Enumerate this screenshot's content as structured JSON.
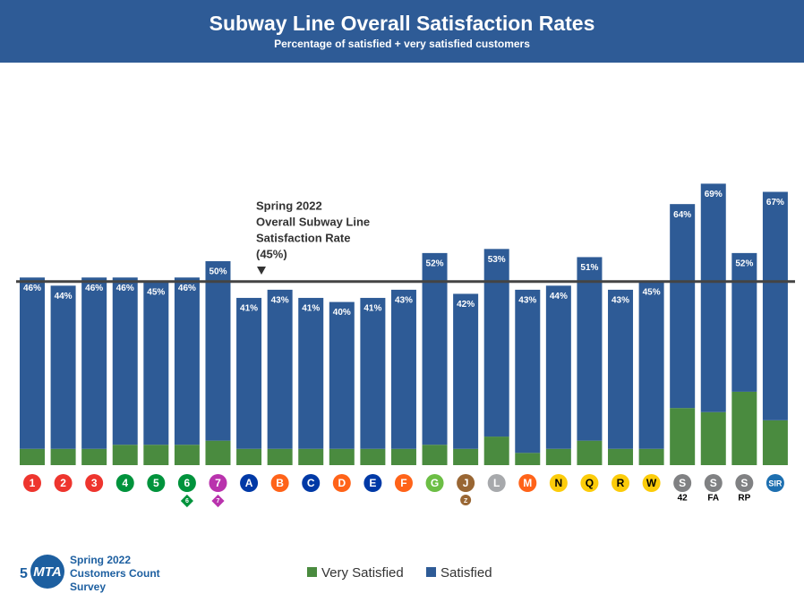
{
  "chart_data": {
    "type": "stacked_bar",
    "title": "Subway Line Overall Satisfaction Rates",
    "subtitle": "Percentage of satisfied + very satisfied customers",
    "categories": [
      "1",
      "2",
      "3",
      "4",
      "5",
      "6",
      "7",
      "A",
      "B",
      "C",
      "D",
      "E",
      "F",
      "G",
      "J",
      "L",
      "M",
      "N",
      "Q",
      "R",
      "W",
      "S",
      "S",
      "S",
      "SIR"
    ],
    "category_colors": [
      "#ee352e",
      "#ee352e",
      "#ee352e",
      "#00933c",
      "#00933c",
      "#00933c",
      "#b933ad",
      "#0039a6",
      "#ff6319",
      "#0039a6",
      "#ff6319",
      "#0039a6",
      "#ff6319",
      "#6cbe45",
      "#996633",
      "#a7a9ac",
      "#ff6319",
      "#fccc0a",
      "#fccc0a",
      "#fccc0a",
      "#fccc0a",
      "#808183",
      "#808183",
      "#808183",
      "#1d6fb0"
    ],
    "category_sublabels": [
      null,
      null,
      null,
      null,
      null,
      "6",
      "7",
      null,
      null,
      null,
      null,
      null,
      null,
      null,
      "Z",
      null,
      null,
      null,
      null,
      null,
      null,
      "42",
      "FA",
      "RP",
      null
    ],
    "sublabel_shapes": [
      null,
      null,
      null,
      null,
      null,
      "diamond",
      "diamond",
      null,
      null,
      null,
      null,
      null,
      null,
      null,
      "circle",
      null,
      null,
      null,
      null,
      null,
      null,
      "text",
      "text",
      "text",
      null
    ],
    "series": [
      {
        "name": "Very Satisfied",
        "color": "#4a8b3f",
        "values": [
          4,
          4,
          4,
          5,
          5,
          5,
          6,
          4,
          4,
          4,
          4,
          4,
          4,
          5,
          4,
          7,
          3,
          4,
          6,
          4,
          4,
          14,
          13,
          18,
          11
        ]
      },
      {
        "name": "Satisfied",
        "color": "#2e5b96",
        "values": [
          42,
          40,
          42,
          41,
          40,
          41,
          44,
          37,
          39,
          37,
          36,
          37,
          39,
          47,
          38,
          46,
          40,
          40,
          45,
          39,
          41,
          50,
          56,
          34,
          56
        ]
      }
    ],
    "totals": [
      46,
      44,
      46,
      46,
      45,
      46,
      50,
      41,
      43,
      41,
      40,
      41,
      43,
      52,
      42,
      53,
      43,
      44,
      51,
      43,
      45,
      64,
      69,
      52,
      67
    ],
    "total_labels": [
      "46%",
      "44%",
      "46%",
      "46%",
      "45%",
      "46%",
      "50%",
      "41%",
      "43%",
      "41%",
      "40%",
      "41%",
      "43%",
      "52%",
      "42%",
      "53%",
      "43%",
      "44%",
      "51%",
      "43%",
      "45%",
      "64%",
      "69%",
      "52%",
      "67%"
    ],
    "reference": {
      "value": 45,
      "label": [
        "Spring 2022",
        "Overall Subway Line",
        "Satisfaction Rate",
        "(45%)"
      ]
    },
    "ylim": [
      0,
      100
    ]
  },
  "footer": {
    "page_number": "5",
    "logo": "MTA",
    "survey": [
      "Spring 2022",
      "Customers Count",
      "Survey"
    ]
  }
}
